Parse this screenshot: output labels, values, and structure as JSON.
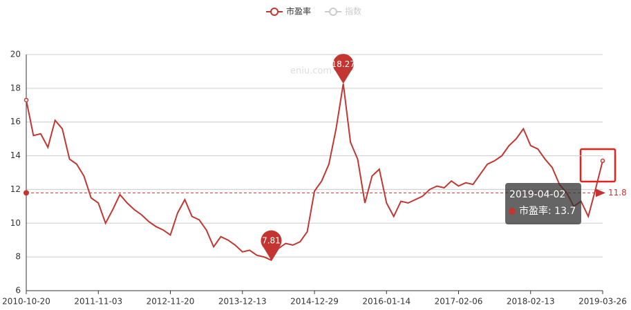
{
  "chart_data": {
    "type": "line",
    "watermark": "eniu.com",
    "categories": [
      "2010-10-20",
      null,
      null,
      null,
      null,
      null,
      null,
      null,
      null,
      null,
      "2011-11-03",
      null,
      null,
      null,
      null,
      null,
      null,
      null,
      null,
      null,
      "2012-11-20",
      null,
      null,
      null,
      null,
      null,
      null,
      null,
      null,
      null,
      "2013-12-13",
      null,
      null,
      null,
      null,
      null,
      null,
      null,
      null,
      null,
      "2014-12-29",
      null,
      null,
      null,
      null,
      null,
      null,
      null,
      null,
      null,
      "2016-01-14",
      null,
      null,
      null,
      null,
      null,
      null,
      null,
      null,
      null,
      "2017-02-06",
      null,
      null,
      null,
      null,
      null,
      null,
      null,
      null,
      null,
      "2018-02-13",
      null,
      null,
      null,
      null,
      null,
      null,
      null,
      null,
      null,
      "2019-03-26"
    ],
    "series": [
      {
        "name": "市盈率",
        "color": "#c23531",
        "visible": true,
        "values": [
          17.3,
          15.2,
          15.3,
          14.5,
          16.1,
          15.6,
          13.8,
          13.5,
          12.8,
          11.5,
          11.2,
          10.0,
          10.8,
          11.7,
          11.2,
          10.8,
          10.5,
          10.1,
          9.8,
          9.6,
          9.3,
          10.6,
          11.4,
          10.4,
          10.2,
          9.6,
          8.6,
          9.2,
          9.0,
          8.7,
          8.3,
          8.4,
          8.1,
          8.0,
          7.81,
          8.5,
          8.8,
          8.7,
          8.9,
          9.5,
          11.9,
          12.5,
          13.5,
          15.6,
          18.27,
          14.8,
          13.8,
          11.2,
          12.8,
          13.2,
          11.2,
          10.4,
          11.3,
          11.2,
          11.4,
          11.6,
          12.0,
          12.2,
          12.1,
          12.5,
          12.2,
          12.4,
          12.3,
          12.9,
          13.5,
          13.7,
          14.0,
          14.6,
          15.0,
          15.6,
          14.6,
          14.4,
          13.8,
          13.3,
          12.3,
          11.8,
          11.0,
          11.3,
          10.4,
          12.0,
          13.7
        ]
      },
      {
        "name": "指数",
        "color": "#cccccc",
        "visible": false
      }
    ],
    "mark_points": [
      "max",
      "min"
    ],
    "average_line": 11.8,
    "tooltip": {
      "date": "2019-04-02",
      "text": "市盈率: 13.7"
    },
    "ylim": [
      6,
      20
    ],
    "yticks": [
      6,
      8,
      10,
      12,
      14,
      16,
      18,
      20
    ],
    "grid": true
  }
}
